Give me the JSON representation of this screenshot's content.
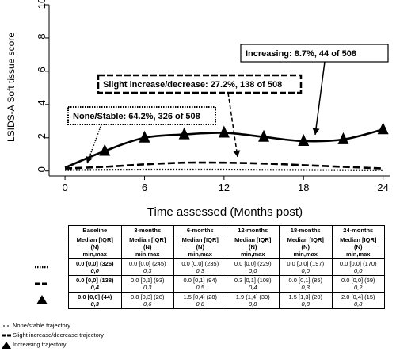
{
  "chart_data": {
    "type": "line",
    "ylabel": "LSIDS-A Soft  tissue score",
    "xlabel": "Time assessed (Months post)",
    "xlim": [
      -1.2,
      24.5
    ],
    "ylim": [
      -0.3,
      10
    ],
    "xticks": [
      0,
      6,
      12,
      18,
      24
    ],
    "yticks": [
      0,
      2,
      4,
      6,
      8,
      10
    ],
    "grid": false,
    "series": [
      {
        "name": "Increasing: 8.7%, 44 of 508",
        "style": "solid-with-triangles",
        "x": [
          0,
          3,
          6,
          9,
          12,
          15,
          18,
          21,
          24
        ],
        "y": [
          0.2,
          1.2,
          2.0,
          2.2,
          2.3,
          2.05,
          1.8,
          1.9,
          2.5
        ]
      },
      {
        "name": "Slight increase/decrease: 27.2%, 138 of 508",
        "style": "dashed",
        "x": [
          0,
          3,
          6,
          9,
          12,
          15,
          18,
          21,
          24
        ],
        "y": [
          0.15,
          0.25,
          0.4,
          0.5,
          0.5,
          0.45,
          0.35,
          0.25,
          0.15
        ]
      },
      {
        "name": "None/Stable: 64.2%, 326 of 508",
        "style": "dotted",
        "x": [
          0,
          3,
          6,
          9,
          12,
          15,
          18,
          21,
          24
        ],
        "y": [
          0.05,
          0.07,
          0.08,
          0.08,
          0.08,
          0.07,
          0.06,
          0.05,
          0.04
        ]
      }
    ]
  },
  "table": {
    "headers": [
      "Baseline",
      "3-months",
      "6-months",
      "12-months",
      "18-months",
      "24-months"
    ],
    "subheader": "Median [IQR]\n(N)\nmin,max",
    "rows": [
      {
        "key": "dotted",
        "cells": [
          {
            "a": "0.0 [0,0] (326)",
            "b": "0,0"
          },
          {
            "a": "0.0 [0,0] (245)",
            "b": "0,3"
          },
          {
            "a": "0.0 [0,0] (235)",
            "b": "0,3"
          },
          {
            "a": "0.0 [0,0] (229)",
            "b": "0,0"
          },
          {
            "a": "0.0 [0,0] (197)",
            "b": "0,0"
          },
          {
            "a": "0.0 [0,0] (170)",
            "b": "0,0"
          }
        ]
      },
      {
        "key": "dashed",
        "cells": [
          {
            "a": "0.0 [0,0] (138)",
            "b": "0,4"
          },
          {
            "a": "0.0 [0,1] (93)",
            "b": "0,3"
          },
          {
            "a": "0.0 [0,1] (94)",
            "b": "0,5"
          },
          {
            "a": "0.3 [0,1] (108)",
            "b": "0,4"
          },
          {
            "a": "0.0 [0,1] (85)",
            "b": "0,3"
          },
          {
            "a": "0.0 [0,0] (69)",
            "b": "0,2"
          }
        ]
      },
      {
        "key": "triangle",
        "cells": [
          {
            "a": "0.0 [0,0] (44)",
            "b": "0,3"
          },
          {
            "a": "0.8 [0,3] (28)",
            "b": "0,6"
          },
          {
            "a": "1.5 [0,4] (28)",
            "b": "0,8"
          },
          {
            "a": "1.9 (1,4] (30)",
            "b": "0,8"
          },
          {
            "a": "1.5 [1,3] (20)",
            "b": "0,8"
          },
          {
            "a": "2.0 [0,4] (15)",
            "b": "0,8"
          }
        ]
      }
    ]
  },
  "legend": [
    "None/stable trajectory",
    "Slight increase/decrease trajectory",
    "Increasing trajectory"
  ]
}
